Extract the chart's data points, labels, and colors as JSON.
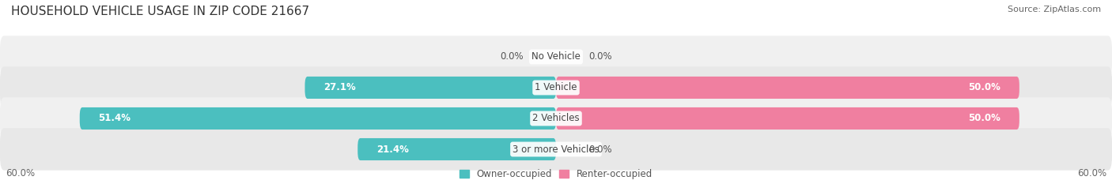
{
  "title": "HOUSEHOLD VEHICLE USAGE IN ZIP CODE 21667",
  "source": "Source: ZipAtlas.com",
  "categories": [
    "No Vehicle",
    "1 Vehicle",
    "2 Vehicles",
    "3 or more Vehicles"
  ],
  "owner_values": [
    0.0,
    27.1,
    51.4,
    21.4
  ],
  "renter_values": [
    0.0,
    50.0,
    50.0,
    0.0
  ],
  "owner_color": "#4bbfbf",
  "renter_color": "#f07fa0",
  "axis_limit": 60.0,
  "bar_height": 0.72,
  "owner_label": "Owner-occupied",
  "renter_label": "Renter-occupied",
  "title_fontsize": 11,
  "source_fontsize": 8,
  "label_fontsize": 8.5,
  "axis_label_fontsize": 8.5,
  "category_fontsize": 8.5,
  "background_color": "#ffffff",
  "row_colors": [
    "#f0f0f0",
    "#e8e8e8",
    "#f0f0f0",
    "#e8e8e8"
  ]
}
